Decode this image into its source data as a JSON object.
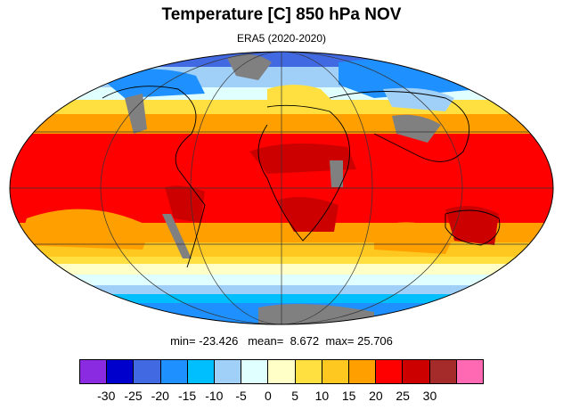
{
  "title": "Temperature [C] 850 hPa NOV",
  "subtitle": "ERA5 (2020-2020)",
  "stats": {
    "min_label": "min=",
    "min": "-23.426",
    "mean_label": "mean=",
    "mean": "8.672",
    "max_label": "max=",
    "max": "25.706"
  },
  "colorbar": {
    "colors": [
      "#8a2be2",
      "#0000cd",
      "#4169e1",
      "#1e90ff",
      "#00bfff",
      "#a0d0f8",
      "#e0ffff",
      "#ffffc8",
      "#ffe040",
      "#ffc820",
      "#ffa000",
      "#ff0000",
      "#cd0000",
      "#a52a2a",
      "#ff69b4"
    ],
    "labels": [
      "-30",
      "-25",
      "-20",
      "-15",
      "-10",
      "-5",
      "0",
      "5",
      "10",
      "15",
      "20",
      "25",
      "30"
    ]
  },
  "map_colors": {
    "ocean_hot": "#ff0000",
    "warm": "#ffa000",
    "yellow": "#ffc820",
    "lightyellow": "#ffe040",
    "pale": "#ffffc8",
    "cyan_pale": "#e0ffff",
    "lightblue": "#a0d0f8",
    "skyblue": "#00bfff",
    "dodger": "#1e90ff",
    "royal": "#4169e1",
    "darkred": "#cd0000",
    "missing": "#808080"
  }
}
